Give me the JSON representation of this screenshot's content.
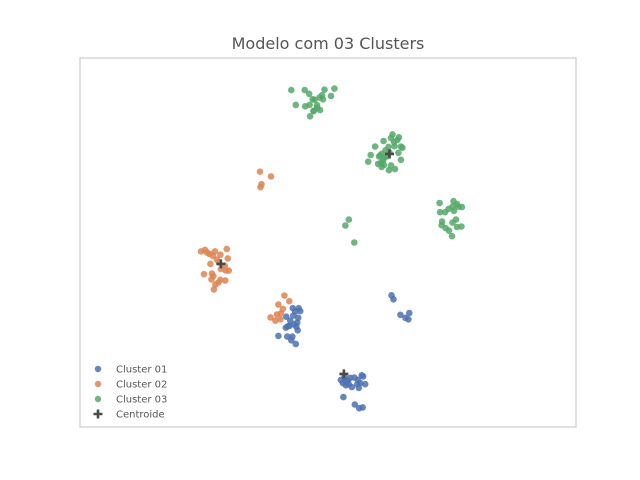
{
  "chart_data": {
    "type": "scatter",
    "title": "Modelo com 03 Clusters",
    "xlabel": "",
    "ylabel": "",
    "xlim": [
      0,
      100
    ],
    "ylim": [
      0,
      100
    ],
    "grid": false,
    "axes_ticks_visible": false,
    "legend_placement": "lower-left",
    "series": [
      {
        "name": "Cluster 01",
        "color": "#4c72b0",
        "points": [
          [
            42.4,
            28.8
          ],
          [
            43.0,
            30.2
          ],
          [
            42.2,
            27.4
          ],
          [
            44.0,
            29.6
          ],
          [
            43.6,
            27.2
          ],
          [
            41.6,
            29.9
          ],
          [
            44.4,
            31.4
          ],
          [
            42.9,
            32.2
          ],
          [
            41.5,
            26.9
          ],
          [
            43.9,
            26.2
          ],
          [
            42.6,
            23.5
          ],
          [
            43.5,
            22.5
          ],
          [
            41.8,
            24.5
          ],
          [
            40.0,
            24.7
          ],
          [
            43.4,
            31.3
          ],
          [
            44.1,
            32.2
          ],
          [
            41.9,
            27.3
          ],
          [
            43.8,
            28.3
          ],
          [
            42.8,
            24.5
          ],
          [
            43.1,
            27.8
          ],
          [
            62.8,
            35.7
          ],
          [
            63.2,
            34.6
          ],
          [
            64.6,
            30.4
          ],
          [
            65.6,
            29.6
          ],
          [
            66.4,
            30.9
          ],
          [
            66.2,
            29.2
          ],
          [
            53.3,
            13.6
          ],
          [
            55.3,
            13.4
          ],
          [
            54.8,
            10.8
          ],
          [
            54.0,
            12.5
          ],
          [
            53.0,
            11.9
          ],
          [
            56.5,
            11.9
          ],
          [
            57.5,
            11.6
          ],
          [
            53.1,
            8.1
          ],
          [
            55.4,
            6.1
          ],
          [
            56.3,
            5.1
          ],
          [
            53.6,
            11.3
          ],
          [
            54.2,
            11.6
          ],
          [
            56.8,
            14.0
          ],
          [
            57.1,
            13.7
          ],
          [
            56.2,
            10.6
          ],
          [
            54.5,
            13.3
          ],
          [
            56.0,
            12.8
          ],
          [
            52.6,
            12.7
          ],
          [
            53.6,
            12.5
          ],
          [
            55.9,
            11.6
          ],
          [
            57.0,
            5.3
          ]
        ]
      },
      {
        "name": "Cluster 02",
        "color": "#dd8452",
        "points": [
          [
            26.3,
            44.2
          ],
          [
            28.0,
            44.6
          ],
          [
            29.8,
            45.7
          ],
          [
            29.4,
            42.4
          ],
          [
            27.9,
            39.2
          ],
          [
            27.3,
            38.6
          ],
          [
            26.9,
            40.9
          ],
          [
            28.3,
            39.9
          ],
          [
            29.3,
            39.7
          ],
          [
            26.6,
            41.6
          ],
          [
            25.0,
            41.4
          ],
          [
            24.4,
            47.6
          ],
          [
            25.6,
            47.3
          ],
          [
            27.2,
            47.6
          ],
          [
            29.6,
            48.2
          ],
          [
            26.1,
            46.9
          ],
          [
            26.8,
            46.4
          ],
          [
            27.6,
            45.4
          ],
          [
            28.3,
            46.7
          ],
          [
            30.0,
            42.4
          ],
          [
            27.0,
            37.3
          ],
          [
            26.5,
            40.0
          ],
          [
            28.4,
            42.8
          ],
          [
            29.2,
            43.7
          ],
          [
            25.2,
            48.0
          ],
          [
            36.3,
            69.2
          ],
          [
            38.5,
            67.9
          ],
          [
            36.6,
            65.8
          ],
          [
            36.4,
            65.0
          ],
          [
            40.0,
            33.2
          ],
          [
            42.2,
            34.1
          ],
          [
            40.9,
            32.0
          ],
          [
            40.5,
            30.8
          ],
          [
            38.4,
            29.7
          ],
          [
            39.7,
            30.5
          ],
          [
            39.4,
            28.8
          ],
          [
            40.4,
            29.2
          ],
          [
            41.2,
            35.6
          ]
        ]
      },
      {
        "name": "Cluster 03",
        "color": "#55a868",
        "points": [
          [
            45.3,
            91.3
          ],
          [
            46.2,
            90.3
          ],
          [
            46.9,
            88.8
          ],
          [
            47.3,
            88.7
          ],
          [
            49.3,
            91.4
          ],
          [
            48.8,
            89.9
          ],
          [
            48.3,
            89.3
          ],
          [
            49.0,
            88.8
          ],
          [
            50.6,
            89.7
          ],
          [
            51.3,
            91.7
          ],
          [
            47.8,
            86.5
          ],
          [
            45.4,
            86.9
          ],
          [
            46.3,
            87.3
          ],
          [
            48.4,
            85.9
          ],
          [
            47.1,
            85.7
          ],
          [
            47.8,
            87.2
          ],
          [
            46.4,
            84.2
          ],
          [
            47.1,
            85.6
          ],
          [
            43.5,
            87.3
          ],
          [
            42.6,
            91.3
          ],
          [
            63.0,
            79.3
          ],
          [
            64.3,
            78.5
          ],
          [
            62.7,
            78.3
          ],
          [
            63.3,
            77.2
          ],
          [
            64.0,
            77.8
          ],
          [
            62.2,
            75.9
          ],
          [
            63.4,
            76.1
          ],
          [
            64.7,
            76.0
          ],
          [
            65.0,
            75.7
          ],
          [
            64.2,
            74.3
          ],
          [
            62.4,
            74.4
          ],
          [
            61.6,
            75.0
          ],
          [
            60.8,
            74.0
          ],
          [
            59.5,
            76.0
          ],
          [
            60.5,
            73.6
          ],
          [
            60.1,
            71.3
          ],
          [
            60.8,
            70.5
          ],
          [
            61.3,
            71.0
          ],
          [
            62.3,
            69.6
          ],
          [
            63.5,
            69.9
          ],
          [
            62.7,
            70.9
          ],
          [
            61.1,
            72.2
          ],
          [
            62.0,
            73.4
          ],
          [
            61.2,
            77.5
          ],
          [
            61.4,
            73.0
          ],
          [
            60.7,
            71.6
          ],
          [
            64.7,
            72.4
          ],
          [
            60.3,
            73.3
          ],
          [
            58.6,
            73.7
          ],
          [
            58.1,
            71.9
          ],
          [
            75.3,
            61.2
          ],
          [
            77.0,
            59.6
          ],
          [
            75.4,
            58.6
          ],
          [
            75.1,
            59.7
          ],
          [
            74.3,
            59.1
          ],
          [
            73.6,
            58.2
          ],
          [
            72.6,
            58.2
          ],
          [
            75.8,
            56.2
          ],
          [
            75.1,
            55.4
          ],
          [
            73.0,
            55.7
          ],
          [
            73.7,
            53.9
          ],
          [
            76.0,
            54.2
          ],
          [
            74.4,
            53.2
          ],
          [
            75.0,
            51.7
          ],
          [
            72.9,
            54.7
          ],
          [
            76.3,
            59.7
          ],
          [
            76.9,
            54.3
          ],
          [
            72.5,
            60.7
          ],
          [
            76.0,
            60.4
          ],
          [
            54.2,
            56.2
          ],
          [
            53.5,
            54.6
          ],
          [
            55.3,
            50.0
          ]
        ]
      }
    ],
    "centroids": {
      "name": "Centroide",
      "color": "#4a4a4a",
      "marker": "plus",
      "points": [
        [
          53.2,
          14.4
        ],
        [
          28.4,
          44.2
        ],
        [
          62.4,
          74.0
        ]
      ]
    }
  }
}
